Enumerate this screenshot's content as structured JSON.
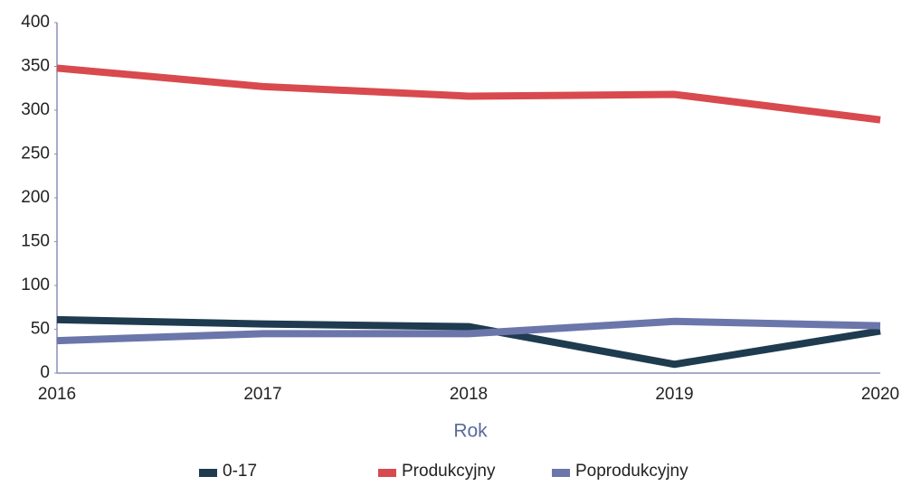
{
  "chart_data": {
    "type": "line",
    "x_label": "Rok",
    "categories": [
      "2016",
      "2017",
      "2018",
      "2019",
      "2020"
    ],
    "series": [
      {
        "name": "0-17",
        "color": "#1f3b4f",
        "values": [
          61,
          56,
          53,
          10,
          48
        ]
      },
      {
        "name": "Produkcyjny",
        "color": "#d84a4e",
        "values": [
          348,
          327,
          316,
          318,
          289
        ]
      },
      {
        "name": "Poprodukcyjny",
        "color": "#6b76aa",
        "values": [
          37,
          45,
          45,
          59,
          54
        ]
      }
    ],
    "ylim": [
      0,
      400
    ],
    "yticks": [
      0,
      50,
      100,
      150,
      200,
      250,
      300,
      350,
      400
    ],
    "grid": false,
    "legend": "bottom"
  }
}
